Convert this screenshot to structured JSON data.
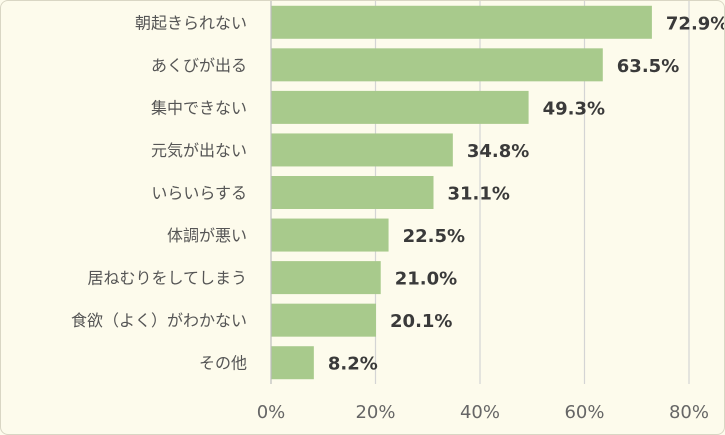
{
  "chart_data": {
    "type": "bar",
    "orientation": "horizontal",
    "categories": [
      "朝起きられない",
      "あくびが出る",
      "集中できない",
      "元気が出ない",
      "いらいらする",
      "体調が悪い",
      "居ねむりをしてしまう",
      "食欲（よく）がわかない",
      "その他"
    ],
    "values": [
      72.9,
      63.5,
      49.3,
      34.8,
      31.1,
      22.5,
      21.0,
      20.1,
      8.2
    ],
    "value_labels": [
      "72.9%",
      "63.5%",
      "49.3%",
      "34.8%",
      "31.1%",
      "22.5%",
      "21.0%",
      "20.1%",
      "8.2%"
    ],
    "x_ticks": [
      0,
      20,
      40,
      60,
      80
    ],
    "x_tick_labels": [
      "0%",
      "20%",
      "40%",
      "60%",
      "80%"
    ],
    "xlim": [
      0,
      80
    ],
    "grid": true,
    "title": "",
    "xlabel": "",
    "ylabel": "",
    "colors": {
      "bar": "#a8ca8c",
      "background": "#fdfbec"
    }
  }
}
